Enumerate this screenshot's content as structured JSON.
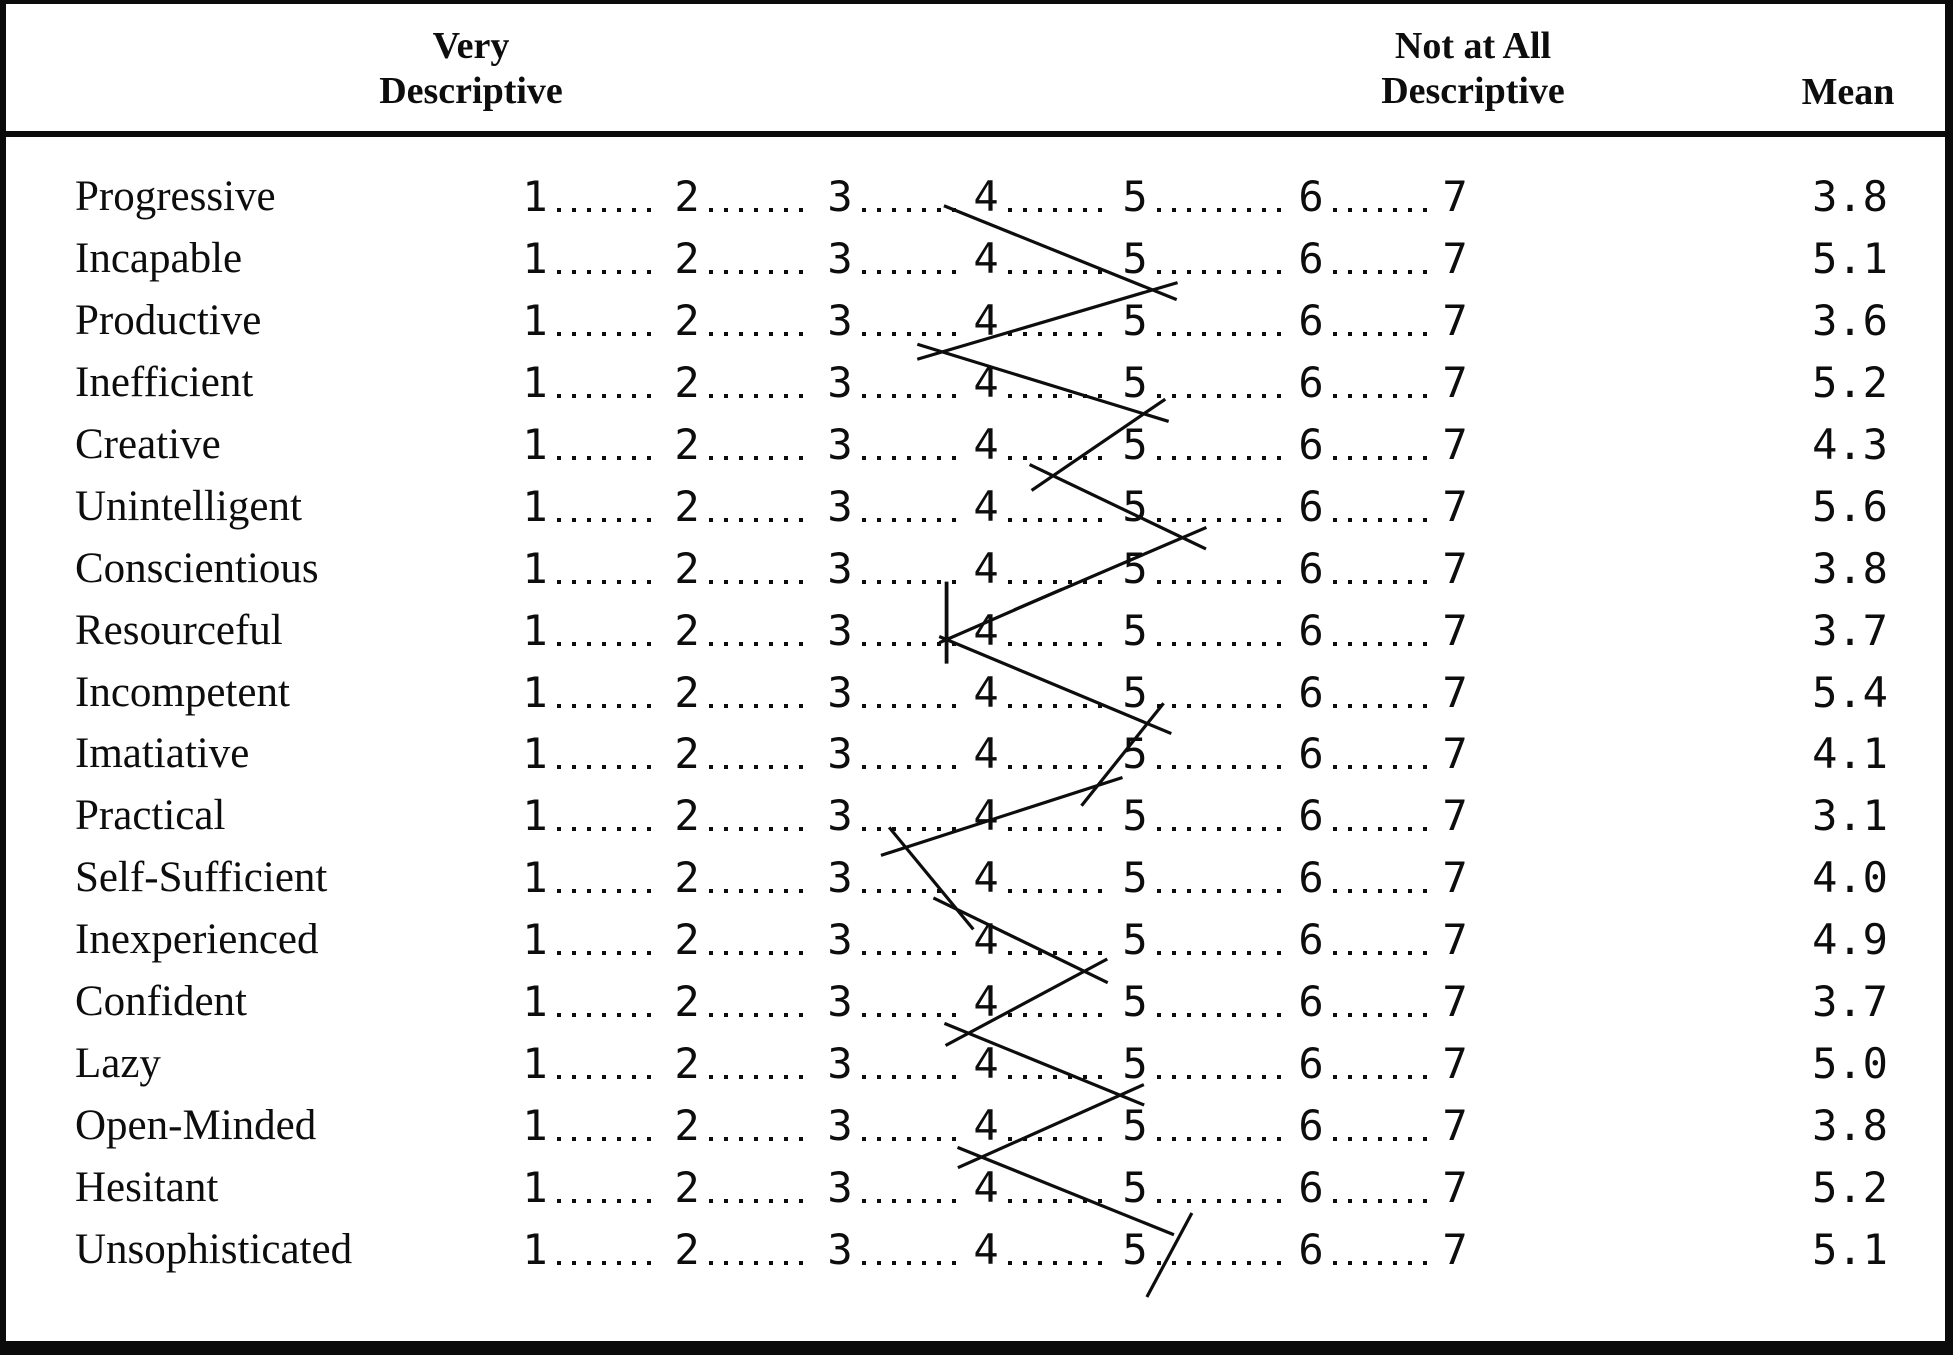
{
  "header": {
    "left_line1": "Very",
    "left_line2": "Descriptive",
    "right_line1": "Not at All",
    "right_line2": "Descriptive",
    "mean_label": "Mean"
  },
  "scale": {
    "min": 1,
    "max": 7,
    "numbers": [
      "1",
      "2",
      "3",
      "4",
      "5",
      "6",
      "7"
    ]
  },
  "items": [
    {
      "label": "Progressive",
      "mean": "3.8",
      "pen_value": 3.75
    },
    {
      "label": "Incapable",
      "mean": "5.1",
      "pen_value": 5.1
    },
    {
      "label": "Productive",
      "mean": "3.6",
      "pen_value": 3.7
    },
    {
      "label": "Inefficient",
      "mean": "5.2",
      "pen_value": 5.05
    },
    {
      "label": "Creative",
      "mean": "4.3",
      "pen_value": 4.45
    },
    {
      "label": "Unintelligent",
      "mean": "5.6",
      "pen_value": 5.27
    },
    {
      "label": "Conscientious",
      "mean": "3.8",
      "pen_value": 4.35
    },
    {
      "label": "Resourceful",
      "mean": "3.7",
      "pen_value": 3.73,
      "pen_mark": "tick"
    },
    {
      "label": "Incompetent",
      "mean": "5.4",
      "pen_value": 5.07
    },
    {
      "label": "Imatiative",
      "mean": "4.1",
      "pen_value": 4.75
    },
    {
      "label": "Practical",
      "mean": "3.1",
      "pen_value": 3.45
    },
    {
      "label": "Self-Sufficient",
      "mean": "4.0",
      "pen_value": 3.8
    },
    {
      "label": "Inexperienced",
      "mean": "4.9",
      "pen_value": 4.66
    },
    {
      "label": "Confident",
      "mean": "3.7",
      "pen_value": 3.88
    },
    {
      "label": "Lazy",
      "mean": "5.0",
      "pen_value": 4.9
    },
    {
      "label": "Open-Minded",
      "mean": "3.8",
      "pen_value": 3.97
    },
    {
      "label": "Hesitant",
      "mean": "5.2",
      "pen_value": 5.0
    },
    {
      "label": "Unsophisticated",
      "mean": "5.1",
      "pen_value": 5.13,
      "pen_mark": "slash"
    }
  ],
  "colors": {
    "ink": "#0d0d0d",
    "paper": "#ffffff"
  }
}
